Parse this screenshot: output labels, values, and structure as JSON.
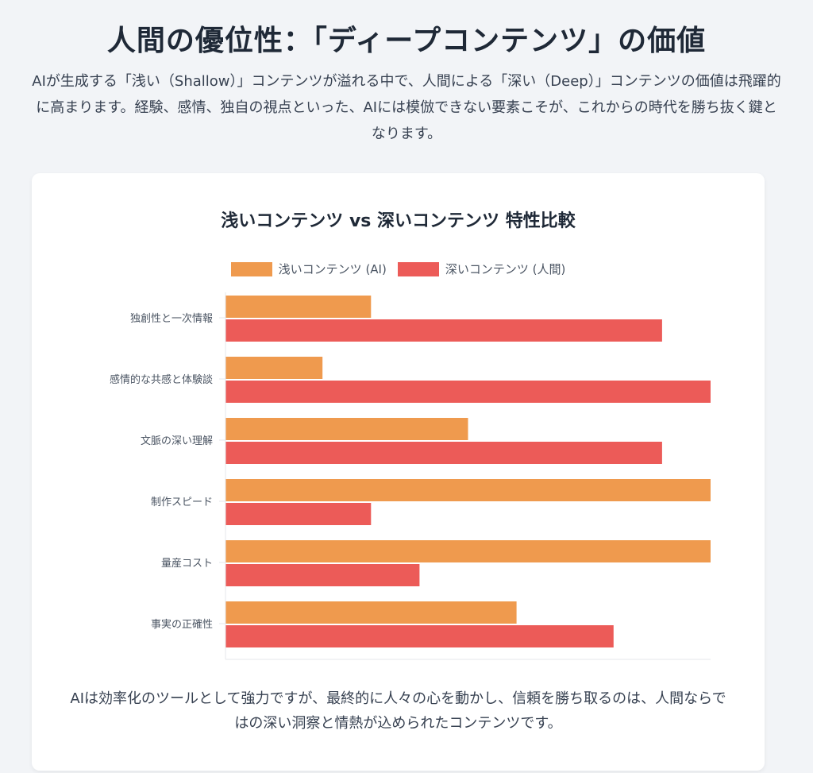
{
  "page": {
    "title": "人間の優位性：「ディープコンテンツ」の価値",
    "intro": "AIが生成する「浅い（Shallow）」コンテンツが溢れる中で、人間による「深い（Deep）」コンテンツの価値は飛躍的に高まります。経験、感情、独自の視点といった、AIには模倣できない要素こそが、これからの時代を勝ち抜く鍵となります。",
    "takeaway": "AIは効率化のツールとして強力ですが、最終的に人々の心を動かし、信頼を勝ち取るのは、人間ならではの深い洞察と情熱が込められたコンテンツです。"
  },
  "colors": {
    "shallow": "#ef9a4e",
    "deep": "#ec5b58",
    "axis": "#e5e7eb",
    "tick_text": "#4b5563"
  },
  "chart_data": {
    "type": "bar",
    "orientation": "horizontal",
    "title": "浅いコンテンツ vs 深いコンテンツ 特性比較",
    "categories": [
      "独創性と一次情報",
      "感情的な共感と体験談",
      "文脈の深い理解",
      "制作スピード",
      "量産コスト",
      "事実の正確性"
    ],
    "series": [
      {
        "name": "浅いコンテンツ (AI)",
        "values": [
          3,
          2,
          5,
          10,
          10,
          6
        ]
      },
      {
        "name": "深いコンテンツ (人間)",
        "values": [
          9,
          10,
          9,
          3,
          4,
          8
        ]
      }
    ],
    "xlim": [
      0,
      10
    ],
    "legend": "top-center",
    "grid": false
  }
}
